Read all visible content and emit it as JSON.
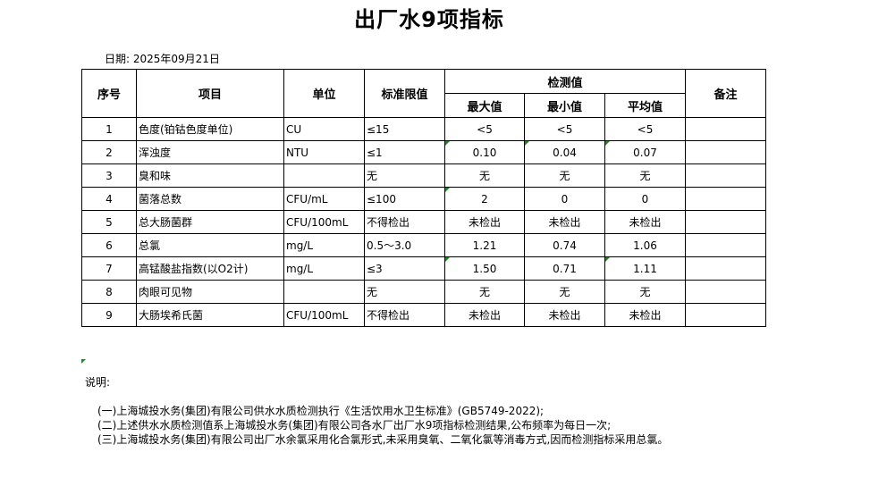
{
  "title": "出厂水9项指标",
  "date": "日期: 2025年09月21日",
  "headers": {
    "no": "序号",
    "item": "项目",
    "unit": "单位",
    "limit": "标准限值",
    "measured": "检测值",
    "max": "最大值",
    "min": "最小值",
    "avg": "平均值",
    "remark": "备注"
  },
  "rows": [
    {
      "no": "1",
      "item": "色度(铂钴色度单位)",
      "unit": "CU",
      "limit": "≤15",
      "max": "<5",
      "min": "<5",
      "avg": "<5",
      "remark": ""
    },
    {
      "no": "2",
      "item": "浑浊度",
      "unit": "NTU",
      "limit": "≤1",
      "max": "0.10",
      "min": "0.04",
      "avg": "0.07",
      "remark": ""
    },
    {
      "no": "3",
      "item": "臭和味",
      "unit": "",
      "limit": "无",
      "max": "无",
      "min": "无",
      "avg": "无",
      "remark": ""
    },
    {
      "no": "4",
      "item": "菌落总数",
      "unit": "CFU/mL",
      "limit": "≤100",
      "max": "2",
      "min": "0",
      "avg": "0",
      "remark": ""
    },
    {
      "no": "5",
      "item": "总大肠菌群",
      "unit": "CFU/100mL",
      "limit": "不得检出",
      "max": "未检出",
      "min": "未检出",
      "avg": "未检出",
      "remark": ""
    },
    {
      "no": "6",
      "item": "总氯",
      "unit": "mg/L",
      "limit": "0.5～3.0",
      "max": "1.21",
      "min": "0.74",
      "avg": "1.06",
      "remark": ""
    },
    {
      "no": "7",
      "item": "高锰酸盐指数(以O2计)",
      "unit": "mg/L",
      "limit": "≤3",
      "max": "1.50",
      "min": "0.71",
      "avg": "1.11",
      "remark": ""
    },
    {
      "no": "8",
      "item": "肉眼可见物",
      "unit": "",
      "limit": "无",
      "max": "无",
      "min": "无",
      "avg": "无",
      "remark": ""
    },
    {
      "no": "9",
      "item": "大肠埃希氏菌",
      "unit": "CFU/100mL",
      "limit": "不得检出",
      "max": "未检出",
      "min": "未检出",
      "avg": "未检出",
      "remark": ""
    }
  ],
  "notes": {
    "label": "说明:",
    "lines": [
      "(一)上海城投水务(集团)有限公司供水水质检测执行《生活饮用水卫生标准》(GB5749-2022);",
      "(二)上述供水水质检测值系上海城投水务(集团)有限公司各水厂出厂水9项指标检测结果,公布频率为每日一次;",
      "(三)上海城投水务(集团)有限公司出厂水余氯采用化合氯形式,未采用臭氧、二氧化氯等消毒方式,因而检测指标采用总氯。"
    ]
  }
}
